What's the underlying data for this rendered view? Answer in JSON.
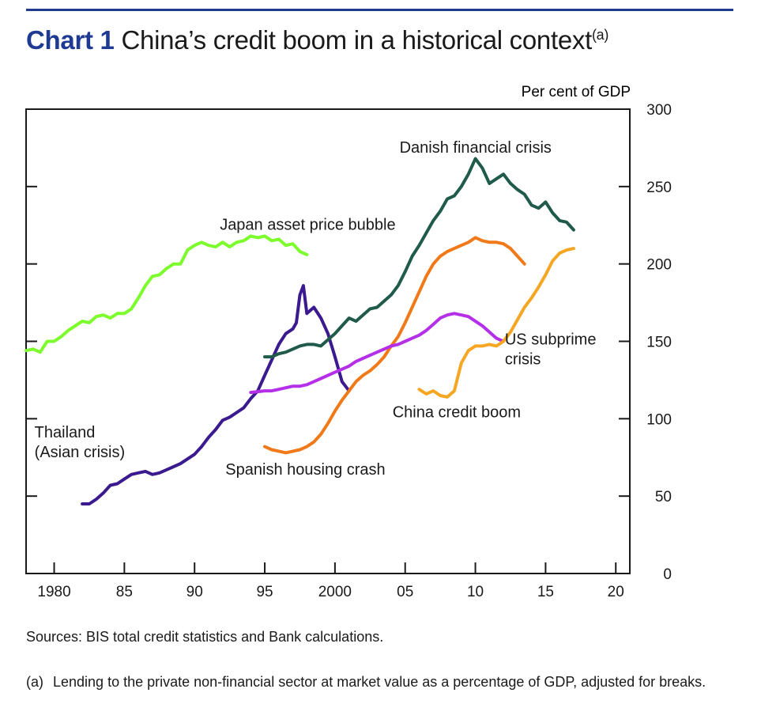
{
  "header": {
    "chart_number": "Chart 1",
    "title": "China’s credit boom in a historical context",
    "title_note": "(a)"
  },
  "colors": {
    "title_blue": "#1f3a93",
    "japan": "#7cfc2c",
    "thailand": "#3b1a8f",
    "danish": "#1f5a4a",
    "spanish": "#f07a1a",
    "us": "#b52ee8",
    "china": "#f5a623"
  },
  "chart_data": {
    "type": "line",
    "title": "China’s credit boom in a historical context",
    "ylabel": "Per cent of GDP",
    "xlim": [
      1978,
      2021
    ],
    "ylim": [
      0,
      300
    ],
    "x_ticks": [
      1980,
      1985,
      1990,
      1995,
      2000,
      2005,
      2010,
      2015,
      2020
    ],
    "x_tick_labels": [
      "1980",
      "85",
      "90",
      "95",
      "2000",
      "05",
      "10",
      "15",
      "20"
    ],
    "y_ticks": [
      0,
      50,
      100,
      150,
      200,
      250,
      300
    ],
    "y_tick_labels": [
      "0",
      "50",
      "100",
      "150",
      "200",
      "250",
      "300"
    ],
    "grid": false,
    "series": [
      {
        "name": "Japan asset price bubble",
        "color_key": "japan",
        "x": [
          1978.0,
          1978.5,
          1979.0,
          1979.5,
          1980.0,
          1980.5,
          1981.0,
          1981.5,
          1982.0,
          1982.5,
          1983.0,
          1983.5,
          1984.0,
          1984.5,
          1985.0,
          1985.5,
          1986.0,
          1986.5,
          1987.0,
          1987.5,
          1988.0,
          1988.5,
          1989.0,
          1989.5,
          1990.0,
          1990.5,
          1991.0,
          1991.5,
          1992.0,
          1992.5,
          1993.0,
          1993.5,
          1994.0,
          1994.5,
          1995.0,
          1995.5,
          1996.0,
          1996.5,
          1997.0,
          1997.5,
          1998.0
        ],
        "y": [
          144,
          145,
          143,
          150,
          150,
          153,
          157,
          160,
          163,
          162,
          166,
          167,
          165,
          168,
          168,
          171,
          178,
          186,
          192,
          193,
          197,
          200,
          200,
          209,
          212,
          214,
          212,
          211,
          214,
          211,
          214,
          215,
          218,
          217,
          218,
          215,
          216,
          212,
          213,
          208,
          206
        ]
      },
      {
        "name": "Thailand (Asian crisis)",
        "color_key": "thailand",
        "x": [
          1982.0,
          1982.5,
          1983.0,
          1983.5,
          1984.0,
          1984.5,
          1985.0,
          1985.5,
          1986.0,
          1986.5,
          1987.0,
          1987.5,
          1988.0,
          1988.5,
          1989.0,
          1989.5,
          1990.0,
          1990.5,
          1991.0,
          1991.5,
          1992.0,
          1992.5,
          1993.0,
          1993.5,
          1994.0,
          1994.5,
          1995.0,
          1995.5,
          1996.0,
          1996.5,
          1997.0,
          1997.25,
          1997.5,
          1997.75,
          1998.0,
          1998.5,
          1999.0,
          1999.5,
          2000.0,
          2000.5,
          2001.0
        ],
        "y": [
          45,
          45,
          48,
          52,
          57,
          58,
          61,
          64,
          65,
          66,
          64,
          65,
          67,
          69,
          71,
          74,
          77,
          82,
          88,
          93,
          99,
          101,
          104,
          107,
          113,
          118,
          128,
          138,
          148,
          155,
          158,
          162,
          180,
          186,
          168,
          172,
          165,
          155,
          140,
          124,
          118
        ]
      },
      {
        "name": "Danish financial crisis",
        "color_key": "danish",
        "x": [
          1995.0,
          1995.5,
          1996.0,
          1996.5,
          1997.0,
          1997.5,
          1998.0,
          1998.5,
          1999.0,
          1999.5,
          2000.0,
          2000.5,
          2001.0,
          2001.5,
          2002.0,
          2002.5,
          2003.0,
          2003.5,
          2004.0,
          2004.5,
          2005.0,
          2005.5,
          2006.0,
          2006.5,
          2007.0,
          2007.5,
          2008.0,
          2008.5,
          2009.0,
          2009.5,
          2010.0,
          2010.5,
          2011.0,
          2011.5,
          2012.0,
          2012.5,
          2013.0,
          2013.5,
          2014.0,
          2014.5,
          2015.0,
          2015.5,
          2016.0,
          2016.5,
          2017.0
        ],
        "y": [
          140,
          140,
          142,
          143,
          145,
          147,
          148,
          148,
          147,
          151,
          155,
          160,
          165,
          163,
          167,
          171,
          172,
          176,
          180,
          186,
          195,
          205,
          212,
          220,
          228,
          234,
          242,
          244,
          250,
          258,
          268,
          262,
          252,
          255,
          258,
          252,
          248,
          245,
          238,
          236,
          240,
          233,
          228,
          227,
          222
        ]
      },
      {
        "name": "Spanish housing crash",
        "color_key": "spanish",
        "x": [
          1995.0,
          1995.5,
          1996.0,
          1996.5,
          1997.0,
          1997.5,
          1998.0,
          1998.5,
          1999.0,
          1999.5,
          2000.0,
          2000.5,
          2001.0,
          2001.5,
          2002.0,
          2002.5,
          2003.0,
          2003.5,
          2004.0,
          2004.5,
          2005.0,
          2005.5,
          2006.0,
          2006.5,
          2007.0,
          2007.5,
          2008.0,
          2008.5,
          2009.0,
          2009.5,
          2010.0,
          2010.5,
          2011.0,
          2011.5,
          2012.0,
          2012.5,
          2013.0,
          2013.5
        ],
        "y": [
          82,
          80,
          79,
          78,
          79,
          80,
          82,
          85,
          90,
          97,
          105,
          112,
          118,
          124,
          128,
          131,
          135,
          140,
          147,
          153,
          162,
          172,
          182,
          192,
          200,
          205,
          208,
          210,
          212,
          214,
          217,
          215,
          214,
          214,
          213,
          210,
          205,
          200
        ]
      },
      {
        "name": "US subprime crisis",
        "color_key": "us",
        "x": [
          1994.0,
          1995.0,
          1995.5,
          1996.0,
          1996.5,
          1997.0,
          1997.5,
          1998.0,
          1998.5,
          1999.0,
          1999.5,
          2000.0,
          2000.5,
          2001.0,
          2001.5,
          2002.0,
          2002.5,
          2003.0,
          2003.5,
          2004.0,
          2004.5,
          2005.0,
          2005.5,
          2006.0,
          2006.5,
          2007.0,
          2007.5,
          2008.0,
          2008.5,
          2009.0,
          2009.5,
          2010.0,
          2010.5,
          2011.0,
          2011.5,
          2012.0
        ],
        "y": [
          117,
          118,
          118,
          119,
          120,
          121,
          121,
          122,
          124,
          126,
          128,
          130,
          132,
          134,
          137,
          139,
          141,
          143,
          145,
          147,
          148,
          150,
          152,
          154,
          157,
          161,
          165,
          167,
          168,
          167,
          166,
          163,
          160,
          156,
          152,
          150
        ]
      },
      {
        "name": "China credit boom",
        "color_key": "china",
        "x": [
          2006.0,
          2006.5,
          2007.0,
          2007.5,
          2008.0,
          2008.5,
          2009.0,
          2009.5,
          2010.0,
          2010.5,
          2011.0,
          2011.5,
          2012.0,
          2012.5,
          2013.0,
          2013.5,
          2014.0,
          2014.5,
          2015.0,
          2015.5,
          2016.0,
          2016.5,
          2017.0
        ],
        "y": [
          119,
          116,
          118,
          115,
          114,
          118,
          136,
          144,
          147,
          147,
          148,
          147,
          150,
          156,
          164,
          172,
          178,
          185,
          193,
          202,
          207,
          209,
          210
        ]
      }
    ],
    "labels": [
      {
        "series": "Japan asset price bubble",
        "lines": [
          "Japan asset price bubble"
        ],
        "at": [
          1991.8,
          222
        ]
      },
      {
        "series": "Thailand (Asian crisis)",
        "lines": [
          "Thailand",
          "(Asian crisis)"
        ],
        "at": [
          1978.6,
          88
        ]
      },
      {
        "series": "Danish financial crisis",
        "lines": [
          "Danish financial crisis"
        ],
        "at": [
          2004.6,
          272
        ]
      },
      {
        "series": "Spanish housing crash",
        "lines": [
          "Spanish housing crash"
        ],
        "at": [
          1992.2,
          64
        ]
      },
      {
        "series": "US subprime crisis",
        "lines": [
          "US subprime",
          "crisis"
        ],
        "at": [
          2012.1,
          148
        ]
      },
      {
        "series": "China credit boom",
        "lines": [
          "China credit boom"
        ],
        "at": [
          2004.1,
          101
        ]
      }
    ]
  },
  "footer": {
    "sources": "Sources: BIS total credit statistics and Bank calculations.",
    "footnote_tag": "(a)",
    "footnote_text": "Lending to the private non-financial sector at market value as a percentage of GDP, adjusted for breaks."
  }
}
